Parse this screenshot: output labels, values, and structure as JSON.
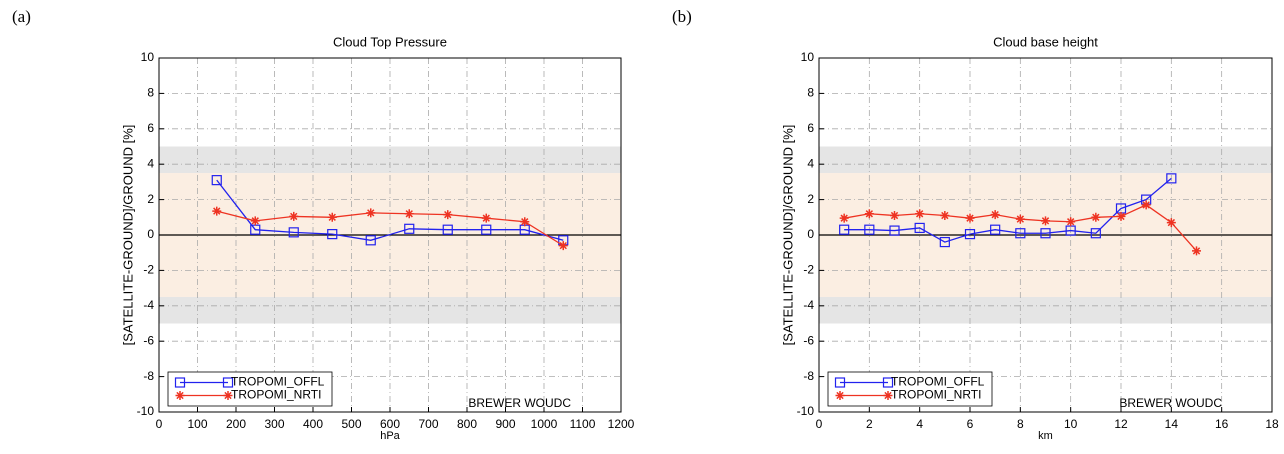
{
  "chart_data": [
    {
      "type": "line",
      "panel_label": "(a)",
      "title": "Cloud Top Pressure",
      "x_label": "hPa",
      "y_label": "[SATELLITE-GROUND]/GROUND  [%]",
      "annotation": "BREWER WOUDC",
      "xlim": [
        0,
        1200
      ],
      "xticks": [
        0,
        100,
        200,
        300,
        400,
        500,
        600,
        700,
        800,
        900,
        1000,
        1100,
        1200
      ],
      "ylim": [
        -10,
        10
      ],
      "yticks": [
        -10,
        -8,
        -6,
        -4,
        -2,
        0,
        2,
        4,
        6,
        8,
        10
      ],
      "grid": true,
      "legend": "lower left",
      "hline": 0,
      "bands": [
        {
          "from": 3.5,
          "to": 5,
          "color": "#e5e5e5"
        },
        {
          "from": -5,
          "to": -3.5,
          "color": "#e5e5e5"
        },
        {
          "from": -3.5,
          "to": 3.5,
          "color": "#fbeee2"
        }
      ],
      "series": [
        {
          "name": "TROPOMI_OFFL",
          "color": "#2222ee",
          "marker": "square",
          "x": [
            150,
            250,
            350,
            450,
            550,
            650,
            750,
            850,
            950,
            1050
          ],
          "values": [
            3.1,
            0.3,
            0.15,
            0.05,
            -0.3,
            0.35,
            0.3,
            0.3,
            0.3,
            -0.3
          ]
        },
        {
          "name": "TROPOMI_NRTI",
          "color": "#ee3322",
          "marker": "asterisk",
          "x": [
            150,
            250,
            350,
            450,
            550,
            650,
            750,
            850,
            950,
            1050
          ],
          "values": [
            1.35,
            0.8,
            1.05,
            1.0,
            1.25,
            1.2,
            1.15,
            0.95,
            0.75,
            -0.6
          ]
        }
      ]
    },
    {
      "type": "line",
      "panel_label": "(b)",
      "title": "Cloud base height",
      "x_label": "km",
      "y_label": "[SATELLITE-GROUND]/GROUND  [%]",
      "annotation": "BREWER WOUDC",
      "xlim": [
        0,
        18
      ],
      "xticks": [
        0,
        2,
        4,
        6,
        8,
        10,
        12,
        14,
        16,
        18
      ],
      "ylim": [
        -10,
        10
      ],
      "yticks": [
        -10,
        -8,
        -6,
        -4,
        -2,
        0,
        2,
        4,
        6,
        8,
        10
      ],
      "grid": true,
      "legend": "lower left",
      "hline": 0,
      "bands": [
        {
          "from": 3.5,
          "to": 5,
          "color": "#e5e5e5"
        },
        {
          "from": -5,
          "to": -3.5,
          "color": "#e5e5e5"
        },
        {
          "from": -3.5,
          "to": 3.5,
          "color": "#fbeee2"
        }
      ],
      "series": [
        {
          "name": "TROPOMI_OFFL",
          "color": "#2222ee",
          "marker": "square",
          "x": [
            1,
            2,
            3,
            4,
            5,
            6,
            7,
            8,
            9,
            10,
            11,
            12,
            13,
            14
          ],
          "values": [
            0.3,
            0.3,
            0.25,
            0.4,
            -0.4,
            0.05,
            0.3,
            0.1,
            0.1,
            0.25,
            0.1,
            1.5,
            2.0,
            3.2
          ]
        },
        {
          "name": "TROPOMI_NRTI",
          "color": "#ee3322",
          "marker": "asterisk",
          "x": [
            1,
            2,
            3,
            4,
            5,
            6,
            7,
            8,
            9,
            10,
            11,
            12,
            13,
            14,
            15
          ],
          "values": [
            0.95,
            1.2,
            1.1,
            1.2,
            1.1,
            0.95,
            1.15,
            0.9,
            0.8,
            0.75,
            1.0,
            1.05,
            1.7,
            0.7,
            -0.9
          ]
        }
      ]
    }
  ]
}
